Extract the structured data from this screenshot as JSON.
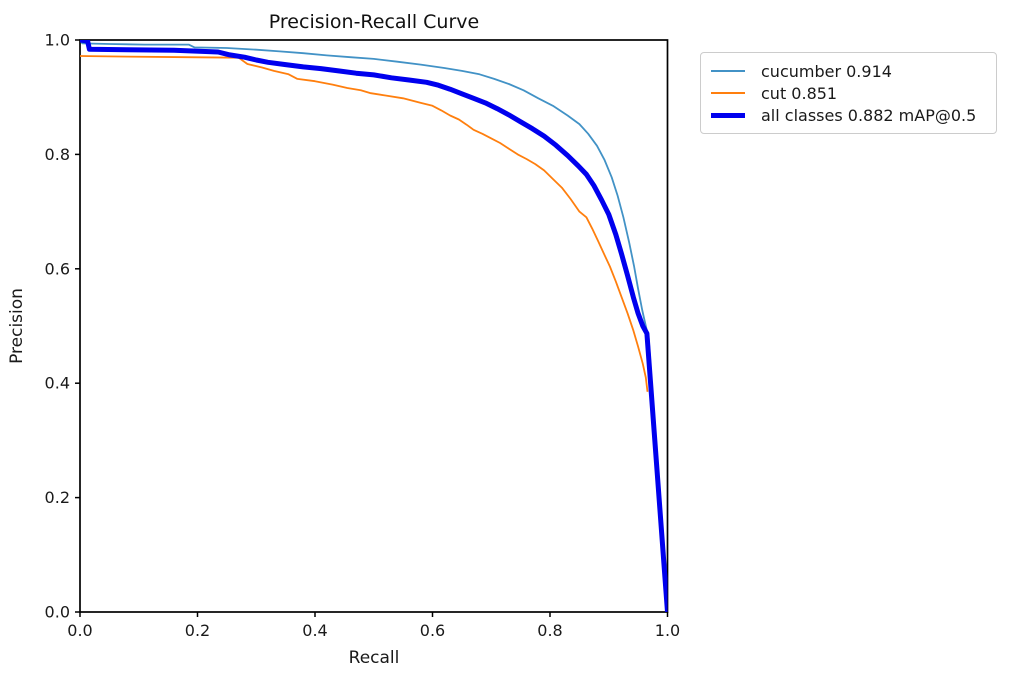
{
  "chart_data": {
    "type": "line",
    "title": "Precision-Recall Curve",
    "xlabel": "Recall",
    "ylabel": "Precision",
    "xlim": [
      0.0,
      1.0
    ],
    "ylim": [
      0.0,
      1.0
    ],
    "x_tick_labels": [
      "0.0",
      "0.2",
      "0.4",
      "0.6",
      "0.8",
      "1.0"
    ],
    "y_tick_labels": [
      "0.0",
      "0.2",
      "0.4",
      "0.6",
      "0.8",
      "1.0"
    ],
    "grid": false,
    "legend_position": "outside-top-right",
    "axis_color": "#000000",
    "text_color": "#1a1a1a",
    "series": [
      {
        "id": "cucumber",
        "label": "cucumber 0.914",
        "ap": 0.914,
        "color": "#4292c6",
        "linewidth": 1.8,
        "points": [
          [
            0.0,
            1.0
          ],
          [
            0.004,
            0.994
          ],
          [
            0.05,
            0.993
          ],
          [
            0.11,
            0.992
          ],
          [
            0.185,
            0.992
          ],
          [
            0.195,
            0.987
          ],
          [
            0.25,
            0.986
          ],
          [
            0.3,
            0.983
          ],
          [
            0.34,
            0.98
          ],
          [
            0.38,
            0.977
          ],
          [
            0.42,
            0.973
          ],
          [
            0.46,
            0.97
          ],
          [
            0.5,
            0.967
          ],
          [
            0.54,
            0.962
          ],
          [
            0.58,
            0.957
          ],
          [
            0.62,
            0.951
          ],
          [
            0.65,
            0.946
          ],
          [
            0.68,
            0.94
          ],
          [
            0.705,
            0.932
          ],
          [
            0.73,
            0.923
          ],
          [
            0.755,
            0.912
          ],
          [
            0.78,
            0.898
          ],
          [
            0.805,
            0.885
          ],
          [
            0.83,
            0.868
          ],
          [
            0.85,
            0.853
          ],
          [
            0.865,
            0.836
          ],
          [
            0.88,
            0.815
          ],
          [
            0.893,
            0.79
          ],
          [
            0.905,
            0.76
          ],
          [
            0.915,
            0.728
          ],
          [
            0.925,
            0.69
          ],
          [
            0.935,
            0.645
          ],
          [
            0.943,
            0.605
          ],
          [
            0.95,
            0.565
          ],
          [
            0.957,
            0.528
          ],
          [
            0.963,
            0.5
          ],
          [
            0.968,
            0.478
          ],
          [
            1.0,
            0.0
          ]
        ]
      },
      {
        "id": "cut",
        "label": "cut 0.851",
        "ap": 0.851,
        "color": "#ff7f0e",
        "linewidth": 1.8,
        "points": [
          [
            0.0,
            0.972
          ],
          [
            0.08,
            0.971
          ],
          [
            0.18,
            0.97
          ],
          [
            0.27,
            0.969
          ],
          [
            0.285,
            0.958
          ],
          [
            0.31,
            0.952
          ],
          [
            0.33,
            0.946
          ],
          [
            0.355,
            0.94
          ],
          [
            0.37,
            0.932
          ],
          [
            0.4,
            0.928
          ],
          [
            0.43,
            0.922
          ],
          [
            0.455,
            0.916
          ],
          [
            0.478,
            0.912
          ],
          [
            0.495,
            0.907
          ],
          [
            0.52,
            0.903
          ],
          [
            0.55,
            0.898
          ],
          [
            0.58,
            0.89
          ],
          [
            0.6,
            0.885
          ],
          [
            0.615,
            0.877
          ],
          [
            0.63,
            0.868
          ],
          [
            0.645,
            0.861
          ],
          [
            0.658,
            0.852
          ],
          [
            0.67,
            0.843
          ],
          [
            0.685,
            0.836
          ],
          [
            0.7,
            0.828
          ],
          [
            0.715,
            0.82
          ],
          [
            0.73,
            0.81
          ],
          [
            0.745,
            0.8
          ],
          [
            0.76,
            0.792
          ],
          [
            0.775,
            0.783
          ],
          [
            0.79,
            0.772
          ],
          [
            0.805,
            0.757
          ],
          [
            0.82,
            0.742
          ],
          [
            0.835,
            0.722
          ],
          [
            0.85,
            0.7
          ],
          [
            0.862,
            0.69
          ],
          [
            0.872,
            0.67
          ],
          [
            0.882,
            0.648
          ],
          [
            0.892,
            0.626
          ],
          [
            0.902,
            0.604
          ],
          [
            0.912,
            0.578
          ],
          [
            0.922,
            0.55
          ],
          [
            0.932,
            0.522
          ],
          [
            0.942,
            0.492
          ],
          [
            0.95,
            0.464
          ],
          [
            0.958,
            0.434
          ],
          [
            0.963,
            0.41
          ],
          [
            0.966,
            0.385
          ]
        ]
      },
      {
        "id": "all-classes",
        "label": "all classes 0.882 mAP@0.5",
        "ap": 0.882,
        "color": "#0000ee",
        "linewidth": 5,
        "points": [
          [
            0.0,
            1.0
          ],
          [
            0.013,
            0.998
          ],
          [
            0.016,
            0.984
          ],
          [
            0.08,
            0.983
          ],
          [
            0.16,
            0.982
          ],
          [
            0.235,
            0.979
          ],
          [
            0.255,
            0.974
          ],
          [
            0.28,
            0.97
          ],
          [
            0.3,
            0.965
          ],
          [
            0.32,
            0.961
          ],
          [
            0.35,
            0.957
          ],
          [
            0.38,
            0.953
          ],
          [
            0.41,
            0.95
          ],
          [
            0.44,
            0.946
          ],
          [
            0.47,
            0.942
          ],
          [
            0.5,
            0.939
          ],
          [
            0.53,
            0.934
          ],
          [
            0.56,
            0.93
          ],
          [
            0.59,
            0.926
          ],
          [
            0.61,
            0.921
          ],
          [
            0.63,
            0.914
          ],
          [
            0.65,
            0.906
          ],
          [
            0.67,
            0.898
          ],
          [
            0.69,
            0.89
          ],
          [
            0.71,
            0.88
          ],
          [
            0.73,
            0.869
          ],
          [
            0.75,
            0.857
          ],
          [
            0.77,
            0.845
          ],
          [
            0.79,
            0.832
          ],
          [
            0.81,
            0.816
          ],
          [
            0.83,
            0.798
          ],
          [
            0.848,
            0.78
          ],
          [
            0.862,
            0.765
          ],
          [
            0.875,
            0.745
          ],
          [
            0.888,
            0.72
          ],
          [
            0.9,
            0.695
          ],
          [
            0.912,
            0.66
          ],
          [
            0.922,
            0.625
          ],
          [
            0.932,
            0.588
          ],
          [
            0.942,
            0.55
          ],
          [
            0.95,
            0.522
          ],
          [
            0.958,
            0.5
          ],
          [
            0.965,
            0.487
          ],
          [
            1.0,
            0.0
          ]
        ]
      }
    ]
  }
}
